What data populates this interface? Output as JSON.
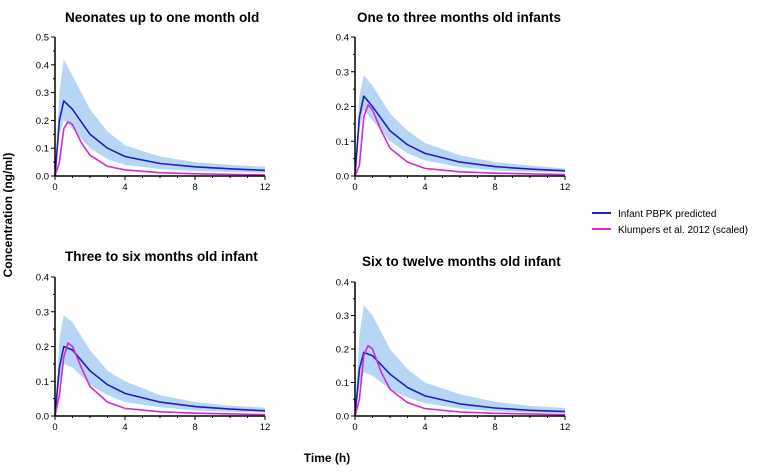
{
  "figure": {
    "ylabel": "Concentration (ng/ml)",
    "xlabel": "Time (h)"
  },
  "legend": [
    {
      "label": "Infant PBPK predicted",
      "color": "#1f1fbf"
    },
    {
      "label": "Klumpers et al. 2012 (scaled)",
      "color": "#d42ad0"
    }
  ],
  "colors": {
    "band": "#b7d6f5",
    "pbpk": "#1f1fbf",
    "klumpers": "#d42ad0",
    "axis": "#000000"
  },
  "chart_data": [
    {
      "type": "line",
      "title": "Neonates up to one month old",
      "ylim": [
        0,
        0.5
      ],
      "yticks": [
        "0.0",
        "0.1",
        "0.2",
        "0.3",
        "0.4",
        "0.5"
      ],
      "xlim": [
        0,
        12
      ],
      "xticks": [
        "0",
        "4",
        "8",
        "12"
      ],
      "series": [
        {
          "name": "Infant PBPK predicted",
          "kind": "line",
          "x": [
            0,
            0.25,
            0.5,
            1,
            2,
            3,
            4,
            6,
            8,
            10,
            12
          ],
          "values": [
            0,
            0.2,
            0.27,
            0.24,
            0.15,
            0.1,
            0.07,
            0.045,
            0.033,
            0.026,
            0.02
          ]
        },
        {
          "name": "Klumpers et al. 2012 (scaled)",
          "kind": "line",
          "x": [
            0,
            0.25,
            0.5,
            0.75,
            1,
            1.5,
            2,
            3,
            4,
            6,
            8,
            12
          ],
          "values": [
            0,
            0.05,
            0.17,
            0.195,
            0.185,
            0.12,
            0.075,
            0.035,
            0.022,
            0.012,
            0.008,
            0.004
          ]
        },
        {
          "kind": "band",
          "x": [
            0,
            0.25,
            0.5,
            1,
            2,
            3,
            4,
            6,
            8,
            10,
            12
          ],
          "lower": [
            0,
            0.15,
            0.2,
            0.17,
            0.1,
            0.06,
            0.04,
            0.025,
            0.018,
            0.014,
            0.012
          ],
          "upper": [
            0,
            0.3,
            0.42,
            0.36,
            0.24,
            0.16,
            0.11,
            0.07,
            0.05,
            0.04,
            0.033
          ]
        }
      ]
    },
    {
      "type": "line",
      "title": "One to three months old infants",
      "ylim": [
        0,
        0.4
      ],
      "yticks": [
        "0.0",
        "0.1",
        "0.2",
        "0.3",
        "0.4"
      ],
      "xlim": [
        0,
        12
      ],
      "xticks": [
        "0",
        "4",
        "8",
        "12"
      ],
      "series": [
        {
          "name": "Infant PBPK predicted",
          "kind": "line",
          "x": [
            0,
            0.25,
            0.5,
            1,
            2,
            3,
            4,
            6,
            8,
            10,
            12
          ],
          "values": [
            0,
            0.17,
            0.23,
            0.2,
            0.13,
            0.09,
            0.065,
            0.04,
            0.027,
            0.02,
            0.015
          ]
        },
        {
          "name": "Klumpers et al. 2012 (scaled)",
          "kind": "line",
          "x": [
            0,
            0.25,
            0.5,
            0.75,
            1,
            1.5,
            2,
            3,
            4,
            6,
            8,
            12
          ],
          "values": [
            0,
            0.03,
            0.17,
            0.205,
            0.19,
            0.13,
            0.08,
            0.04,
            0.022,
            0.012,
            0.008,
            0.004
          ]
        },
        {
          "kind": "band",
          "x": [
            0,
            0.25,
            0.5,
            1,
            2,
            3,
            4,
            6,
            8,
            10,
            12
          ],
          "lower": [
            0,
            0.13,
            0.19,
            0.16,
            0.1,
            0.065,
            0.045,
            0.025,
            0.016,
            0.012,
            0.01
          ],
          "upper": [
            0,
            0.23,
            0.29,
            0.26,
            0.18,
            0.13,
            0.095,
            0.06,
            0.04,
            0.03,
            0.022
          ]
        }
      ]
    },
    {
      "type": "line",
      "title": "Three to six months old infant",
      "ylim": [
        0,
        0.4
      ],
      "yticks": [
        "0.0",
        "0.1",
        "0.2",
        "0.3",
        "0.4"
      ],
      "xlim": [
        0,
        12
      ],
      "xticks": [
        "0",
        "4",
        "8",
        "12"
      ],
      "series": [
        {
          "name": "Infant PBPK predicted",
          "kind": "line",
          "x": [
            0,
            0.25,
            0.5,
            1,
            2,
            3,
            4,
            6,
            8,
            10,
            12
          ],
          "values": [
            0,
            0.14,
            0.2,
            0.19,
            0.13,
            0.09,
            0.065,
            0.04,
            0.027,
            0.02,
            0.015
          ]
        },
        {
          "name": "Klumpers et al. 2012 (scaled)",
          "kind": "line",
          "x": [
            0,
            0.25,
            0.5,
            0.75,
            1,
            1.5,
            2,
            3,
            4,
            6,
            8,
            12
          ],
          "values": [
            0,
            0.06,
            0.17,
            0.21,
            0.2,
            0.14,
            0.085,
            0.04,
            0.022,
            0.012,
            0.008,
            0.004
          ]
        },
        {
          "kind": "band",
          "x": [
            0,
            0.25,
            0.5,
            1,
            2,
            3,
            4,
            6,
            8,
            10,
            12
          ],
          "lower": [
            0,
            0.1,
            0.15,
            0.14,
            0.09,
            0.06,
            0.04,
            0.025,
            0.016,
            0.012,
            0.01
          ],
          "upper": [
            0,
            0.22,
            0.29,
            0.27,
            0.19,
            0.13,
            0.1,
            0.06,
            0.04,
            0.03,
            0.024
          ]
        }
      ]
    },
    {
      "type": "line",
      "title": "Six to twelve months old infant",
      "ylim": [
        0,
        0.4
      ],
      "yticks": [
        "0.0",
        "0.1",
        "0.2",
        "0.3",
        "0.4"
      ],
      "xlim": [
        0,
        12
      ],
      "xticks": [
        "0",
        "4",
        "8",
        "12"
      ],
      "series": [
        {
          "name": "Infant PBPK predicted",
          "kind": "line",
          "x": [
            0,
            0.25,
            0.5,
            1,
            2,
            3,
            4,
            6,
            8,
            10,
            12
          ],
          "values": [
            0,
            0.14,
            0.19,
            0.18,
            0.125,
            0.085,
            0.06,
            0.036,
            0.024,
            0.017,
            0.013
          ]
        },
        {
          "name": "Klumpers et al. 2012 (scaled)",
          "kind": "line",
          "x": [
            0,
            0.25,
            0.5,
            0.75,
            1,
            1.5,
            2,
            3,
            4,
            6,
            8,
            12
          ],
          "values": [
            0,
            0.05,
            0.18,
            0.21,
            0.2,
            0.13,
            0.08,
            0.04,
            0.022,
            0.012,
            0.008,
            0.004
          ]
        },
        {
          "kind": "band",
          "x": [
            0,
            0.25,
            0.5,
            1,
            2,
            3,
            4,
            6,
            8,
            10,
            12
          ],
          "lower": [
            0,
            0.09,
            0.13,
            0.12,
            0.08,
            0.055,
            0.038,
            0.022,
            0.014,
            0.01,
            0.008
          ],
          "upper": [
            0,
            0.24,
            0.33,
            0.3,
            0.2,
            0.14,
            0.1,
            0.065,
            0.042,
            0.03,
            0.024
          ]
        }
      ]
    }
  ]
}
